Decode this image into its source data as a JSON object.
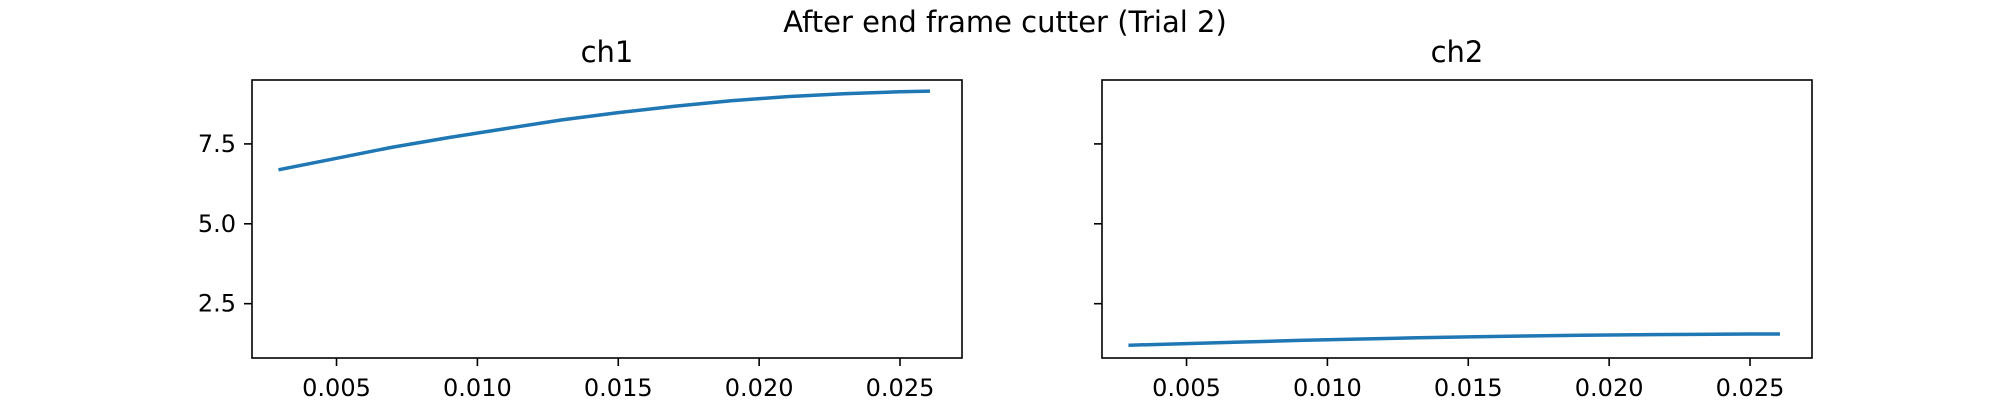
{
  "figure": {
    "title": "After end frame cutter (Trial 2)",
    "background": "#ffffff",
    "line_color": "#1f77b4"
  },
  "chart_data": [
    {
      "type": "line",
      "title": "ch1",
      "xlabel": "",
      "ylabel": "",
      "xlim": [
        0.002,
        0.0272
      ],
      "ylim": [
        0.8,
        9.5
      ],
      "xticks": [
        "0.005",
        "0.010",
        "0.015",
        "0.020",
        "0.025"
      ],
      "xtick_values": [
        0.005,
        0.01,
        0.015,
        0.02,
        0.025
      ],
      "yticks": [
        "2.5",
        "5.0",
        "7.5"
      ],
      "ytick_values": [
        2.5,
        5.0,
        7.5
      ],
      "show_ytick_labels": true,
      "grid": false,
      "series": [
        {
          "x": [
            0.003,
            0.005,
            0.007,
            0.009,
            0.011,
            0.013,
            0.015,
            0.017,
            0.019,
            0.021,
            0.023,
            0.025,
            0.026
          ],
          "y": [
            6.7,
            7.05,
            7.4,
            7.7,
            7.98,
            8.25,
            8.48,
            8.68,
            8.85,
            8.98,
            9.07,
            9.13,
            9.15
          ]
        }
      ]
    },
    {
      "type": "line",
      "title": "ch2",
      "xlabel": "",
      "ylabel": "",
      "xlim": [
        0.002,
        0.0272
      ],
      "ylim": [
        0.8,
        9.5
      ],
      "xticks": [
        "0.005",
        "0.010",
        "0.015",
        "0.020",
        "0.025"
      ],
      "xtick_values": [
        0.005,
        0.01,
        0.015,
        0.02,
        0.025
      ],
      "yticks": [
        "2.5",
        "5.0",
        "7.5"
      ],
      "ytick_values": [
        2.5,
        5.0,
        7.5
      ],
      "show_ytick_labels": false,
      "grid": false,
      "series": [
        {
          "x": [
            0.003,
            0.005,
            0.007,
            0.009,
            0.011,
            0.013,
            0.015,
            0.017,
            0.019,
            0.021,
            0.023,
            0.025,
            0.026
          ],
          "y": [
            1.2,
            1.25,
            1.3,
            1.35,
            1.39,
            1.43,
            1.46,
            1.49,
            1.51,
            1.53,
            1.54,
            1.55,
            1.55
          ]
        }
      ]
    }
  ]
}
